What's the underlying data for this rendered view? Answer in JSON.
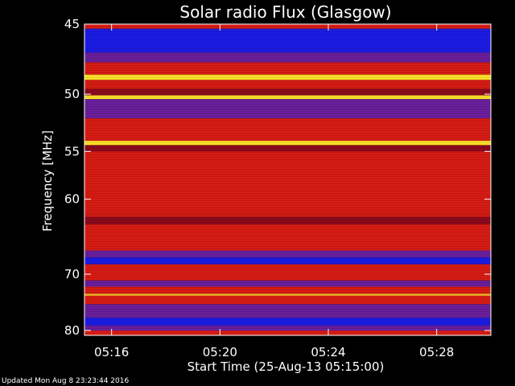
{
  "chart_data": {
    "type": "heatmap",
    "title": "Solar radio Flux (Glasgow)",
    "xlabel": "Start Time (25-Aug-13 05:15:00)",
    "ylabel": "Frequency [MHz]",
    "x_range": [
      "05:15:00",
      "05:30:00"
    ],
    "xticks": [
      "05:16",
      "05:20",
      "05:24",
      "05:28"
    ],
    "xtick_minutes": [
      16,
      20,
      24,
      28
    ],
    "ylim": [
      45,
      81
    ],
    "yticks": [
      45,
      50,
      55,
      60,
      70,
      80
    ],
    "ytick_values": [
      45,
      50,
      55,
      60,
      70,
      80
    ],
    "intensity_bands": [
      {
        "f0": 45.0,
        "f1": 45.3,
        "level": "red"
      },
      {
        "f0": 45.3,
        "f1": 46.9,
        "level": "blue"
      },
      {
        "f0": 46.9,
        "f1": 47.6,
        "level": "purple"
      },
      {
        "f0": 47.6,
        "f1": 48.5,
        "level": "red"
      },
      {
        "f0": 48.5,
        "f1": 48.9,
        "level": "yellow"
      },
      {
        "f0": 48.9,
        "f1": 49.6,
        "level": "red"
      },
      {
        "f0": 49.6,
        "f1": 50.1,
        "level": "darkred"
      },
      {
        "f0": 50.1,
        "f1": 50.4,
        "level": "yellow"
      },
      {
        "f0": 50.4,
        "f1": 52.0,
        "level": "purple"
      },
      {
        "f0": 52.0,
        "f1": 54.0,
        "level": "red"
      },
      {
        "f0": 54.0,
        "f1": 54.4,
        "level": "yellow"
      },
      {
        "f0": 54.4,
        "f1": 55.0,
        "level": "darkred"
      },
      {
        "f0": 55.0,
        "f1": 61.8,
        "level": "red"
      },
      {
        "f0": 61.8,
        "f1": 62.1,
        "level": "red"
      },
      {
        "f0": 62.1,
        "f1": 63.0,
        "level": "darkred"
      },
      {
        "f0": 63.0,
        "f1": 66.5,
        "level": "red"
      },
      {
        "f0": 66.5,
        "f1": 67.5,
        "level": "purple"
      },
      {
        "f0": 67.5,
        "f1": 68.5,
        "level": "blue"
      },
      {
        "f0": 68.5,
        "f1": 71.0,
        "level": "red"
      },
      {
        "f0": 71.0,
        "f1": 72.0,
        "level": "purple"
      },
      {
        "f0": 72.0,
        "f1": 73.2,
        "level": "red"
      },
      {
        "f0": 73.2,
        "f1": 73.5,
        "level": "yellow"
      },
      {
        "f0": 73.5,
        "f1": 75.0,
        "level": "red"
      },
      {
        "f0": 75.0,
        "f1": 77.5,
        "level": "purple"
      },
      {
        "f0": 77.5,
        "f1": 79.0,
        "level": "blue"
      },
      {
        "f0": 79.0,
        "f1": 80.0,
        "level": "purple"
      },
      {
        "f0": 80.0,
        "f1": 81.0,
        "level": "red"
      }
    ],
    "colors": {
      "blue": "#1c1ce6",
      "purple": "#6a1f9c",
      "darkred": "#8c0a1e",
      "red": "#d81c14",
      "yellow": "#ffe32a"
    }
  },
  "footer": "Updated Mon Aug  8 23:23:44 2016"
}
